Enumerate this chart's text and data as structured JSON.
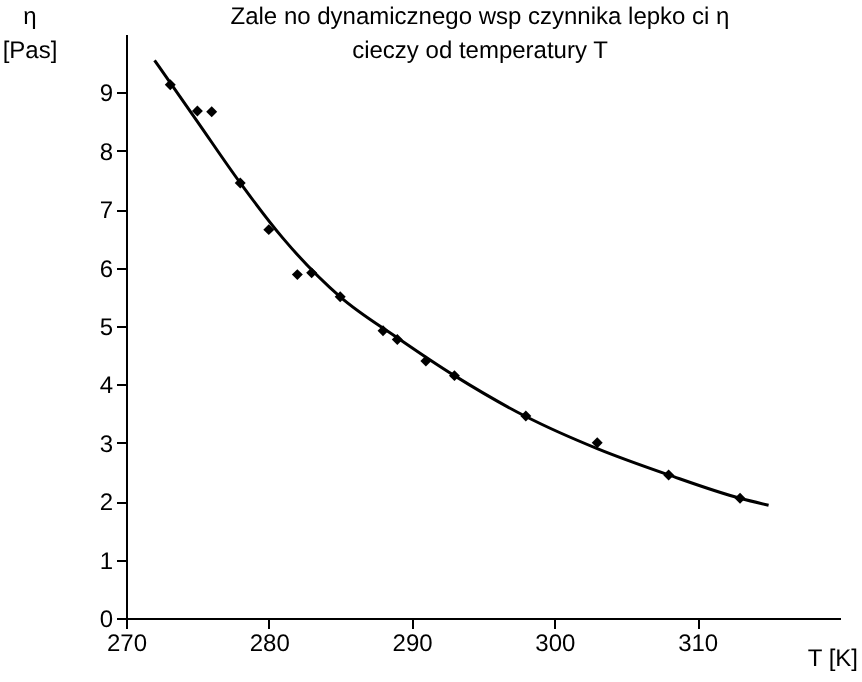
{
  "chart_data": {
    "type": "scatter",
    "title": "Zale  no     dynamicznego wsp   czynnika lepko  ci η",
    "subtitle": "cieczy od temperatury T",
    "xlabel": "T [K]",
    "ylabel": "η [Pas]",
    "xlim": [
      270,
      320
    ],
    "ylim": [
      0,
      10
    ],
    "xticks": [
      270,
      280,
      290,
      300,
      310
    ],
    "yticks": [
      0,
      1,
      2,
      3,
      4,
      5,
      6,
      7,
      8,
      9
    ],
    "grid": false,
    "marker": "diamond",
    "series": [
      {
        "color": "#000000",
        "x": [
          273.1,
          275,
          276,
          278,
          280,
          282,
          283,
          285,
          288,
          289,
          291,
          293,
          298,
          303,
          308,
          313
        ],
        "values": [
          9.13,
          8.68,
          8.67,
          7.45,
          6.65,
          5.88,
          5.91,
          5.5,
          4.92,
          4.77,
          4.4,
          4.15,
          3.46,
          3.0,
          2.45,
          2.05
        ]
      },
      {
        "type": "line",
        "color": "#000000",
        "line_style": "solid",
        "marker": "none",
        "x": [
          272,
          275,
          278,
          281,
          285,
          289,
          293,
          298,
          303,
          308,
          313,
          315
        ],
        "values": [
          9.55,
          8.5,
          7.45,
          6.5,
          5.5,
          4.8,
          4.15,
          3.45,
          2.9,
          2.45,
          2.05,
          1.93
        ]
      }
    ]
  }
}
